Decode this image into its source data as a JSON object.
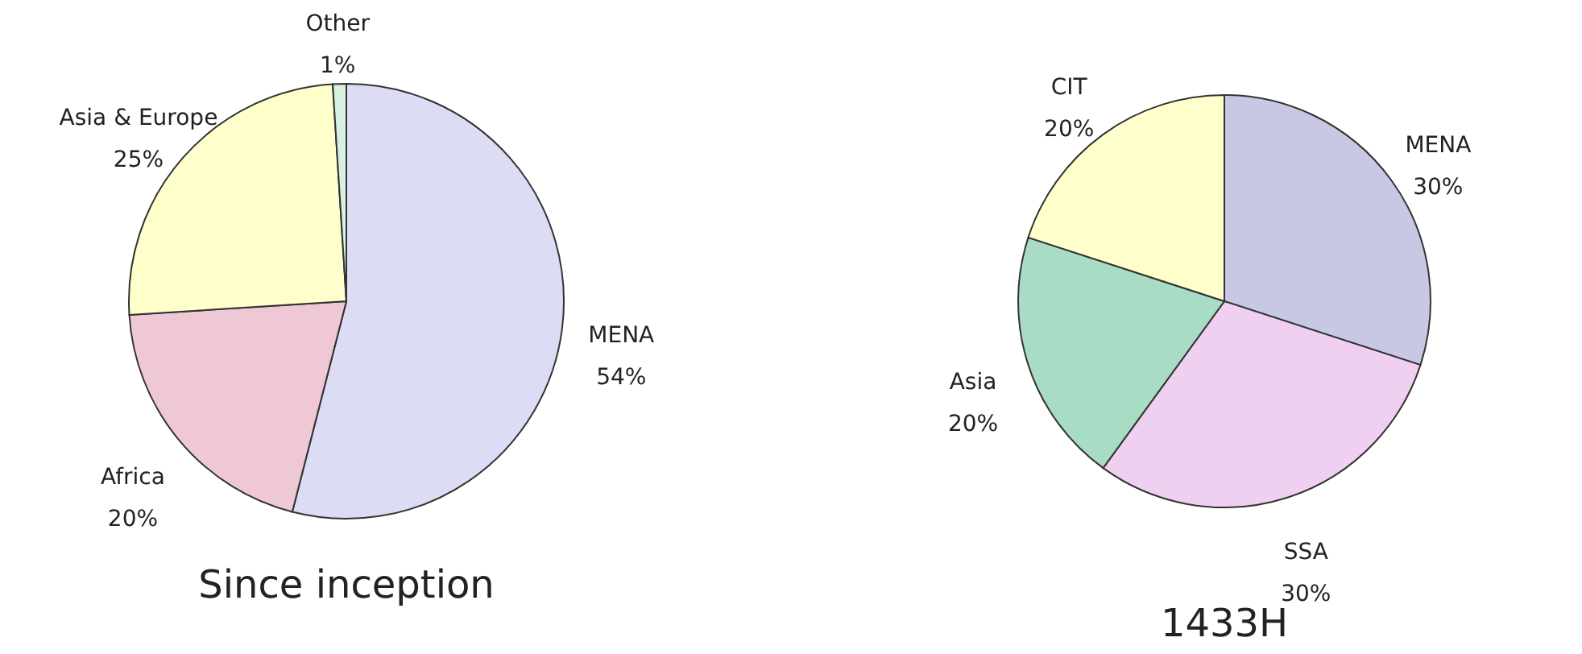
{
  "chart_data": [
    {
      "type": "pie",
      "title": "Since inception",
      "categories": [
        "MENA",
        "Africa",
        "Asia & Europe",
        "Other"
      ],
      "values": [
        54,
        20,
        25,
        1
      ],
      "colors": [
        "#dcdcf4",
        "#eec8d4",
        "#ffffcc",
        "#d8f0e0"
      ],
      "value_labels": [
        "54%",
        "20%",
        "25%",
        "1%"
      ]
    },
    {
      "type": "pie",
      "title": "1433H",
      "categories": [
        "MENA",
        "SSA",
        "Asia",
        "CIT"
      ],
      "values": [
        30,
        30,
        20,
        20
      ],
      "colors": [
        "#c8c8e4",
        "#f0d0f0",
        "#a8dcc4",
        "#ffffcc"
      ],
      "value_labels": [
        "30%",
        "30%",
        "20%",
        "20%"
      ]
    }
  ]
}
